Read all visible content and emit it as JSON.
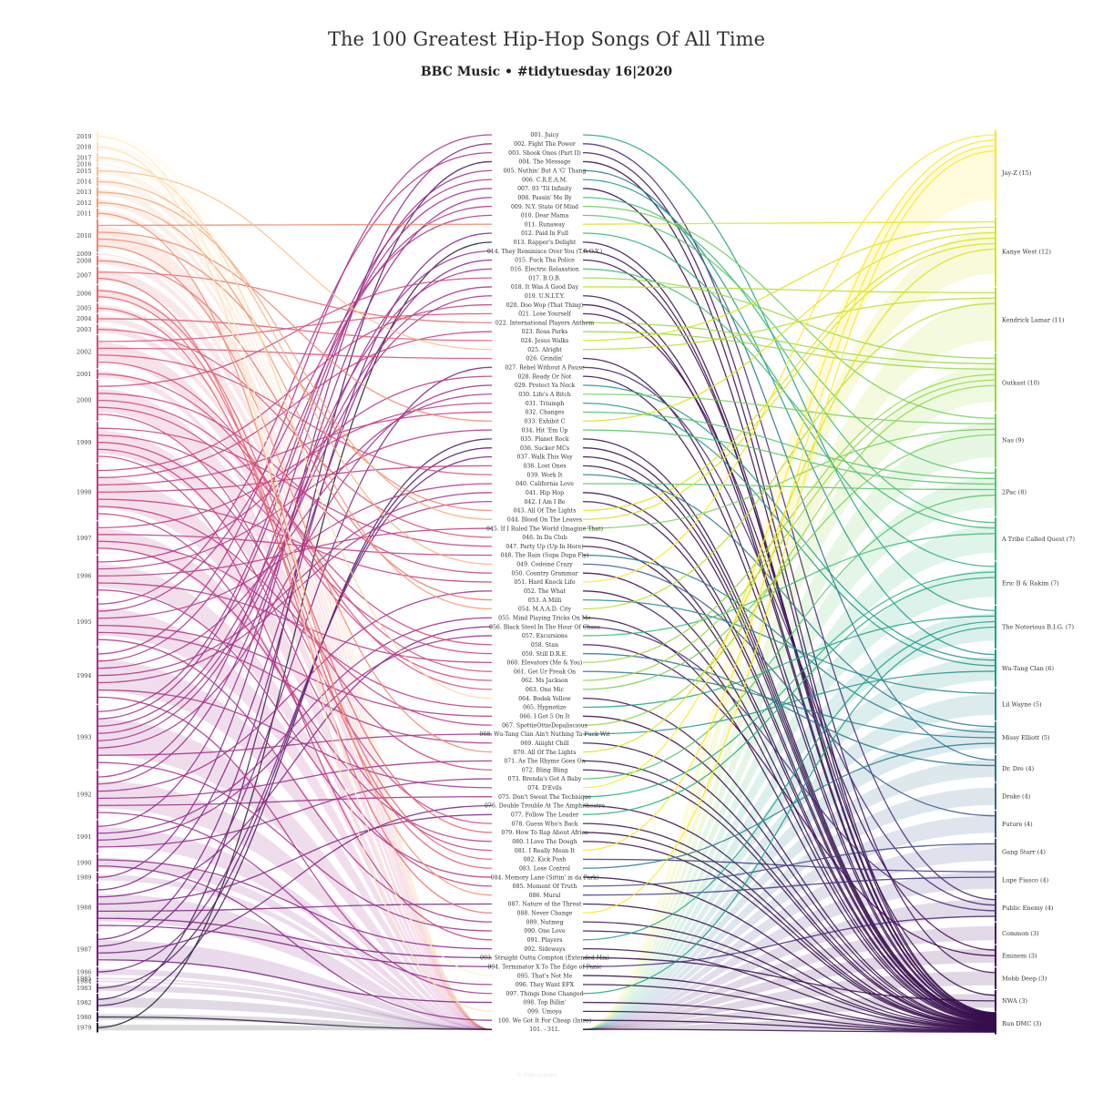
{
  "title": "The 100 Greatest Hip-Hop Songs Of All Time",
  "subtitle": "BBC Music  •  #tidytuesday 16|2020",
  "credit": "© 2020 sproviero",
  "chart_data": {
    "type": "sankey",
    "title": "The 100 Greatest Hip-Hop Songs Of All Time",
    "subtitle": "BBC Music  •  #tidytuesday 16|2020",
    "years": [
      "2019",
      "2018",
      "2017",
      "2016",
      "2015",
      "2014",
      "2013",
      "2012",
      "2011",
      "2010",
      "2009",
      "2008",
      "2007",
      "2006",
      "2005",
      "2004",
      "2003",
      "2002",
      "2001",
      "2000",
      "1999",
      "1998",
      "1997",
      "1996",
      "1995",
      "1994",
      "1993",
      "1992",
      "1991",
      "1990",
      "1989",
      "1988",
      "1987",
      "1986",
      "1985",
      "1984",
      "1983",
      "1982",
      "1980",
      "1979"
    ],
    "songs": [
      "001. Juicy",
      "002. Fight The Power",
      "003. Shook Ones (Part II)",
      "004. The Message",
      "005. Nuthin' But A 'G' Thang",
      "006. C.R.E.A.M.",
      "007. 93 'Til Infinity",
      "008. Passin' Me By",
      "009. N.Y. State Of Mind",
      "010. Dear Mama",
      "011. Runaway",
      "012. Paid In Full",
      "013. Rapper's Delight",
      "014. They Reminisce Over You (T.R.O.Y.)",
      "015. Fuck Tha Police",
      "016. Electric Relaxation",
      "017. B.O.B.",
      "018. It Was A Good Day",
      "019. U.N.I.T.Y.",
      "020. Doo Wop (That Thing)",
      "021. Lose Yourself",
      "022. International Players Anthem",
      "023. Rosa Parks",
      "024. Jesus Walks",
      "025. Alright",
      "026. Grindin'",
      "027. Rebel Without A Pause",
      "028. Ready Or Not",
      "029. Protect Ya Neck",
      "030. Life's A Bitch",
      "031. Triumph",
      "032. Changes",
      "033. Exhibit C",
      "034. Hit 'Em Up",
      "035. Planet Rock",
      "036. Sucker MCs",
      "037. Walk This Way",
      "038. Lost Ones",
      "039. Work It",
      "040. California Love",
      "041. Hip Hop",
      "042. I Am I Be",
      "043. All Of The Lights",
      "044. Blood On The Leaves",
      "045. If I Ruled The World (Imagine That)",
      "046. In Da Club",
      "047. Party Up (Up In Here)",
      "048. The Rain (Supa Dupa Fly)",
      "049. Codeine Crazy",
      "050. Country Grammar",
      "051. Hard Knock Life",
      "052. The What",
      "053. A Milli",
      "054. M.A.A.D. City",
      "055. Mind Playing Tricks On Me",
      "056. Black Steel In The Hour Of Chaos",
      "057. Excursions",
      "058. Stan",
      "059. Still D.R.E.",
      "060. Elevators (Me & You)",
      "061. Get Ur Freak On",
      "062. Ms Jackson",
      "063. One Mic",
      "064. Bodak Yellow",
      "065. Hypnotize",
      "066. I Got 5 On It",
      "067. SpottieOttieDopaliscious",
      "068. Wu-Tang Clan Ain't Nuthing Ta Fuck Wit",
      "069. Aiiight Chill",
      "070. All Of The Lights",
      "071. As The Rhyme Goes On",
      "072. Bling Bling",
      "073. Brenda's Got A Baby",
      "074. D'Evils",
      "075. Don't Sweat The Technique",
      "076. Double Trouble At The Amphitheatre",
      "077. Follow The Leader",
      "078. Guess Who's Back",
      "079. How To Rap About Africa",
      "080. I Love The Dough",
      "081. I Really Mean It",
      "082. Kick Push",
      "083. Lose Control",
      "084. Memory Lane (Sittin' in da Park)",
      "085. Moment Of Truth",
      "086. Mural",
      "087. Nature of the Threat",
      "088. Never Change",
      "089. Nutmeg",
      "090. One Love",
      "091. Players",
      "092. Sideways",
      "093. Straight Outta Compton (Extended Mix)",
      "094. Terminator X To The Edge of Panic",
      "095. That's Not Me",
      "096. They Want EFX",
      "097. Things Done Changed",
      "098. Top Billin'",
      "099. Umoya",
      "100. We Got It For Cheap (Intro)",
      "101. - 311."
    ],
    "artists": [
      "Jay-Z (15)",
      "Kanye West (12)",
      "Kendrick Lamar (11)",
      "Outkast (10)",
      "Nas (9)",
      "2Pac (8)",
      "A Tribe Called Quest (7)",
      "Eric B & Rakim (7)",
      "The Notorious B.I.G. (7)",
      "Wu-Tang Clan (6)",
      "Lil Wayne (5)",
      "Missy Elliott (5)",
      "Dr. Dre (4)",
      "Drake (4)",
      "Future (4)",
      "Gang Starr (4)",
      "Lupe Fiasco (4)",
      "Public Enemy (4)",
      "Common (3)",
      "Eminem (3)",
      "Mobb Deep (3)",
      "NWA (3)",
      "Run DMC (3)"
    ],
    "artist_counts": [
      15,
      12,
      11,
      10,
      9,
      8,
      7,
      7,
      7,
      6,
      5,
      5,
      4,
      4,
      4,
      4,
      4,
      4,
      3,
      3,
      3,
      3,
      3
    ],
    "song_years": [
      1994,
      1989,
      1995,
      1982,
      1992,
      1993,
      1993,
      1991,
      1994,
      1995,
      2010,
      1987,
      1979,
      1992,
      1988,
      1993,
      2000,
      1993,
      1993,
      1998,
      2002,
      2007,
      1998,
      2004,
      2015,
      2002,
      1987,
      1996,
      1993,
      1994,
      1997,
      1998,
      2010,
      1996,
      1982,
      1983,
      1986,
      1998,
      2002,
      1995,
      1994,
      1994,
      2010,
      2013,
      1996,
      2003,
      1999,
      1997,
      2014,
      2000,
      1998,
      1992,
      2008,
      2012,
      1991,
      1988,
      1991,
      2000,
      1999,
      1996,
      2001,
      2000,
      2002,
      2017,
      1997,
      1995,
      1998,
      1993,
      1995,
      2010,
      1992,
      1999,
      1991,
      1994,
      1992,
      1987,
      1988,
      2000,
      2006,
      1997,
      1999,
      2006,
      2005,
      1996,
      1998,
      2011,
      1988,
      2007,
      1995,
      1993,
      1999,
      1990,
      1988,
      1988,
      2019,
      1992,
      1994,
      1987,
      2018,
      1990,
      1980
    ],
    "song_artists": [
      8,
      17,
      20,
      22,
      12,
      9,
      22,
      6,
      4,
      5,
      1,
      7,
      22,
      22,
      21,
      6,
      3,
      2,
      22,
      22,
      19,
      3,
      3,
      1,
      2,
      22,
      17,
      22,
      9,
      4,
      9,
      5,
      1,
      5,
      22,
      22,
      22,
      22,
      11,
      5,
      22,
      22,
      1,
      1,
      4,
      22,
      22,
      11,
      14,
      22,
      0,
      22,
      10,
      2,
      22,
      17,
      6,
      19,
      12,
      3,
      11,
      3,
      4,
      22,
      8,
      22,
      3,
      9,
      22,
      1,
      22,
      22,
      5,
      0,
      7,
      22,
      7,
      22,
      22,
      22,
      0,
      16,
      11,
      22,
      15,
      16,
      22,
      0,
      22,
      22,
      8,
      22,
      21,
      17,
      22,
      22,
      8,
      22,
      22,
      22,
      22
    ],
    "node_colors": [
      "#fde725",
      "#dce319",
      "#b8de29",
      "#95d840",
      "#73d055",
      "#55c667",
      "#3cbb75",
      "#29af7f",
      "#20a387",
      "#1f968b",
      "#238a8d",
      "#287d8e",
      "#2d708e",
      "#33638d",
      "#39568c",
      "#404788",
      "#453781",
      "#482677",
      "#481567",
      "#440154",
      "#3f0e5a",
      "#3a0c4f",
      "#34094a"
    ]
  }
}
